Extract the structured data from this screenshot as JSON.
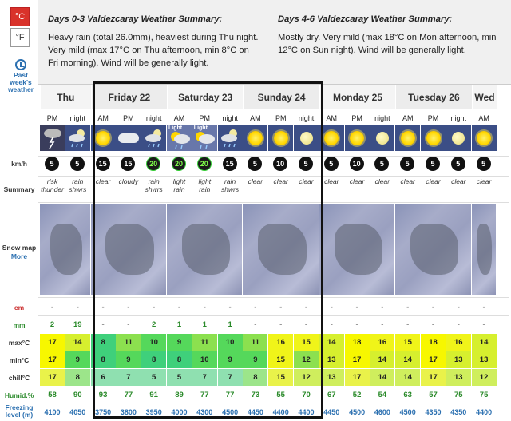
{
  "units": {
    "celsius": "°C",
    "fahrenheit": "°F"
  },
  "sidebar": {
    "past_weather": "Past week's weather"
  },
  "summary": {
    "a_title": "Days 0-3 Valdezcaray Weather Summary:",
    "a_text": "Heavy rain (total 26.0mm), heaviest during Thu night. Very mild (max 17°C on Thu afternoon, min 8°C on Fri morning). Wind will be generally light.",
    "b_title": "Days 4-6 Valdezcaray Weather Summary:",
    "b_text": "Mostly dry. Very mild (max 18°C on Mon afternoon, min 12°C on Sun night). Wind will be generally light."
  },
  "row_labels": {
    "kmh": "km/h",
    "summary": "Summary",
    "snowmap": "Snow map",
    "more": "More",
    "snow": "cm",
    "rain": "mm",
    "max": "max°C",
    "min": "min°C",
    "chill": "chill°C",
    "humid": "Humid.%",
    "freezing": "Freezing level (m)"
  },
  "days": [
    {
      "name": "Thu",
      "periods": [
        "PM",
        "night"
      ]
    },
    {
      "name": "Friday 22",
      "periods": [
        "AM",
        "PM",
        "night"
      ]
    },
    {
      "name": "Saturday 23",
      "periods": [
        "AM",
        "PM",
        "night"
      ]
    },
    {
      "name": "Sunday 24",
      "periods": [
        "AM",
        "PM",
        "night"
      ]
    },
    {
      "name": "Monday 25",
      "periods": [
        "AM",
        "PM",
        "night"
      ]
    },
    {
      "name": "Tuesday 26",
      "periods": [
        "AM",
        "PM",
        "night"
      ]
    },
    {
      "name": "Wed",
      "periods": [
        "AM"
      ]
    }
  ],
  "columns": [
    {
      "icon": "storm-icon",
      "light": "",
      "wind": "5",
      "desc": "risk thunder",
      "snow": "-",
      "rain": "2",
      "max": "17",
      "min": "17",
      "chill": "17",
      "humid": "58",
      "freeze": "4100"
    },
    {
      "icon": "rain-night-icon",
      "light": "",
      "wind": "5",
      "desc": "rain shwrs",
      "snow": "-",
      "rain": "19",
      "max": "14",
      "min": "9",
      "chill": "8",
      "humid": "90",
      "freeze": "4050"
    },
    {
      "icon": "sun-icon",
      "light": "",
      "wind": "15",
      "desc": "clear",
      "snow": "-",
      "rain": "-",
      "max": "8",
      "min": "8",
      "chill": "6",
      "humid": "93",
      "freeze": "3750"
    },
    {
      "icon": "cloud-icon",
      "light": "",
      "wind": "15",
      "desc": "cloudy",
      "snow": "-",
      "rain": "-",
      "max": "11",
      "min": "9",
      "chill": "7",
      "humid": "77",
      "freeze": "3800"
    },
    {
      "icon": "rain-night-icon",
      "light": "",
      "wind": "20",
      "desc": "rain shwrs",
      "snow": "-",
      "rain": "2",
      "max": "10",
      "min": "8",
      "chill": "5",
      "humid": "91",
      "freeze": "3950"
    },
    {
      "icon": "light-rain-icon",
      "light": "Light",
      "wind": "20",
      "desc": "light rain",
      "snow": "-",
      "rain": "1",
      "max": "9",
      "min": "8",
      "chill": "5",
      "humid": "89",
      "freeze": "4000"
    },
    {
      "icon": "light-rain-icon",
      "light": "Light",
      "wind": "20",
      "desc": "light rain",
      "snow": "-",
      "rain": "1",
      "max": "11",
      "min": "10",
      "chill": "7",
      "humid": "77",
      "freeze": "4300"
    },
    {
      "icon": "rain-night-icon",
      "light": "",
      "wind": "15",
      "desc": "rain shwrs",
      "snow": "-",
      "rain": "1",
      "max": "10",
      "min": "9",
      "chill": "7",
      "humid": "77",
      "freeze": "4500"
    },
    {
      "icon": "sun-icon",
      "light": "",
      "wind": "5",
      "desc": "clear",
      "snow": "-",
      "rain": "-",
      "max": "11",
      "min": "9",
      "chill": "8",
      "humid": "73",
      "freeze": "4450"
    },
    {
      "icon": "sun-icon",
      "light": "",
      "wind": "10",
      "desc": "clear",
      "snow": "-",
      "rain": "-",
      "max": "16",
      "min": "15",
      "chill": "15",
      "humid": "55",
      "freeze": "4400"
    },
    {
      "icon": "moon-icon",
      "light": "",
      "wind": "5",
      "desc": "clear",
      "snow": "-",
      "rain": "-",
      "max": "15",
      "min": "12",
      "chill": "12",
      "humid": "70",
      "freeze": "4400"
    },
    {
      "icon": "sun-icon",
      "light": "",
      "wind": "5",
      "desc": "clear",
      "snow": "-",
      "rain": "-",
      "max": "14",
      "min": "13",
      "chill": "13",
      "humid": "67",
      "freeze": "4450"
    },
    {
      "icon": "sun-icon",
      "light": "",
      "wind": "10",
      "desc": "clear",
      "snow": "-",
      "rain": "-",
      "max": "18",
      "min": "17",
      "chill": "17",
      "humid": "52",
      "freeze": "4500"
    },
    {
      "icon": "moon-icon",
      "light": "",
      "wind": "5",
      "desc": "clear",
      "snow": "-",
      "rain": "-",
      "max": "16",
      "min": "14",
      "chill": "14",
      "humid": "54",
      "freeze": "4600"
    },
    {
      "icon": "sun-icon",
      "light": "",
      "wind": "5",
      "desc": "clear",
      "snow": "-",
      "rain": "-",
      "max": "15",
      "min": "14",
      "chill": "14",
      "humid": "63",
      "freeze": "4500"
    },
    {
      "icon": "sun-icon",
      "light": "",
      "wind": "5",
      "desc": "clear",
      "snow": "-",
      "rain": "-",
      "max": "18",
      "min": "17",
      "chill": "17",
      "humid": "57",
      "freeze": "4350"
    },
    {
      "icon": "moon-icon",
      "light": "",
      "wind": "5",
      "desc": "clear",
      "snow": "-",
      "rain": "-",
      "max": "16",
      "min": "13",
      "chill": "13",
      "humid": "75",
      "freeze": "4350"
    },
    {
      "icon": "sun-icon",
      "light": "",
      "wind": "5",
      "desc": "clear",
      "snow": "-",
      "rain": "-",
      "max": "14",
      "min": "13",
      "chill": "12",
      "humid": "75",
      "freeze": "4400"
    }
  ],
  "colors": {
    "brand_red": "#d9322a",
    "link_blue": "#2a6fb0"
  }
}
